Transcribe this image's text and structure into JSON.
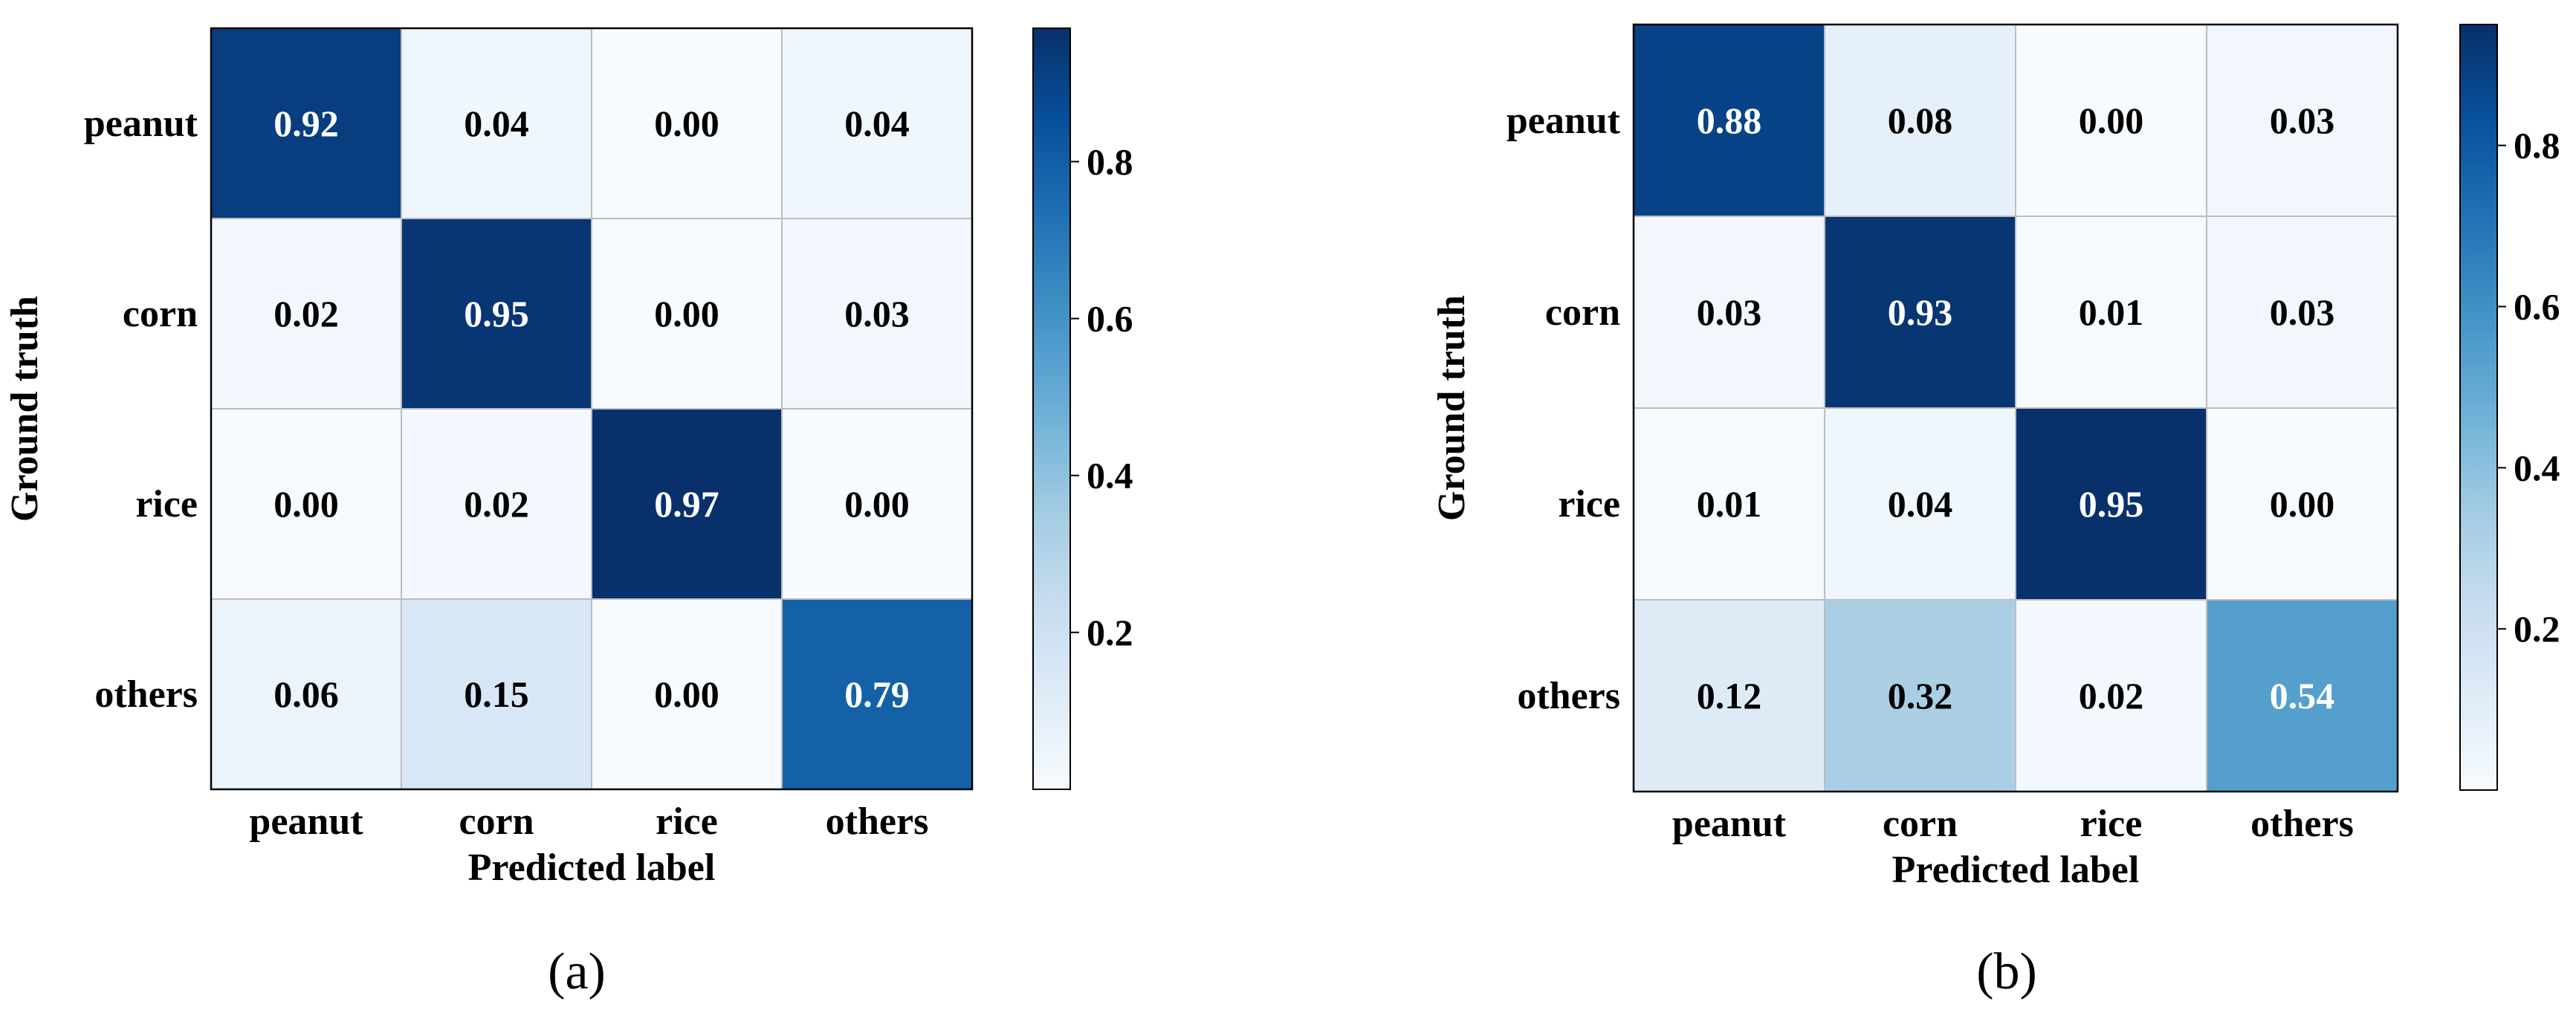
{
  "chart_data": [
    {
      "type": "heatmap",
      "panel_label": "(a)",
      "xlabel": "Predicted label",
      "ylabel": "Ground truth",
      "categories": [
        "peanut",
        "corn",
        "rice",
        "others"
      ],
      "x_tick_labels": [
        "peanut",
        "corn",
        "rice",
        "others"
      ],
      "y_tick_labels": [
        "peanut",
        "corn",
        "rice",
        "others"
      ],
      "values": [
        [
          0.92,
          0.04,
          0.0,
          0.04
        ],
        [
          0.02,
          0.95,
          0.0,
          0.03
        ],
        [
          0.0,
          0.02,
          0.97,
          0.0
        ],
        [
          0.06,
          0.15,
          0.0,
          0.79
        ]
      ],
      "colormap": "Blues",
      "vmin": 0.0,
      "vmax": 0.97,
      "colorbar_ticks": [
        0.2,
        0.4,
        0.6,
        0.8
      ],
      "colorbar_tick_labels": [
        "0.2",
        "0.4",
        "0.6",
        "0.8"
      ]
    },
    {
      "type": "heatmap",
      "panel_label": "(b)",
      "xlabel": "Predicted label",
      "ylabel": "Ground truth",
      "categories": [
        "peanut",
        "corn",
        "rice",
        "others"
      ],
      "x_tick_labels": [
        "peanut",
        "corn",
        "rice",
        "others"
      ],
      "y_tick_labels": [
        "peanut",
        "corn",
        "rice",
        "others"
      ],
      "values": [
        [
          0.88,
          0.08,
          0.0,
          0.03
        ],
        [
          0.03,
          0.93,
          0.01,
          0.03
        ],
        [
          0.01,
          0.04,
          0.95,
          0.0
        ],
        [
          0.12,
          0.32,
          0.02,
          0.54
        ]
      ],
      "colormap": "Blues",
      "vmin": 0.0,
      "vmax": 0.95,
      "colorbar_ticks": [
        0.2,
        0.4,
        0.6,
        0.8
      ],
      "colorbar_tick_labels": [
        "0.2",
        "0.4",
        "0.6",
        "0.8"
      ]
    }
  ]
}
